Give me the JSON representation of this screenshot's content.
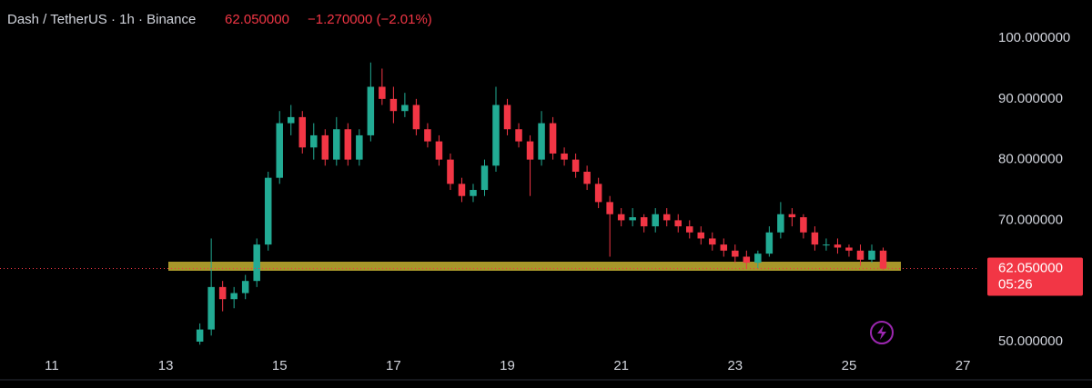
{
  "header": {
    "symbol": "Dash / TetherUS · 1h · Binance",
    "price": "62.050000",
    "change": "−1.270000 (−2.01%)"
  },
  "chart_data": {
    "type": "candlestick",
    "x": [
      13.6,
      13.8,
      14.0,
      14.2,
      14.4,
      14.6,
      14.8,
      15.0,
      15.2,
      15.4,
      15.6,
      15.8,
      16.0,
      16.2,
      16.4,
      16.6,
      16.8,
      17.0,
      17.2,
      17.4,
      17.6,
      17.8,
      18.0,
      18.2,
      18.4,
      18.6,
      18.8,
      19.0,
      19.2,
      19.4,
      19.6,
      19.8,
      20.0,
      20.2,
      20.4,
      20.6,
      20.8,
      21.0,
      21.2,
      21.4,
      21.6,
      21.8,
      22.0,
      22.2,
      22.4,
      22.6,
      22.8,
      23.0,
      23.2,
      23.4,
      23.6,
      23.8,
      24.0,
      24.2,
      24.4,
      24.6,
      24.8,
      25.0,
      25.2,
      25.4,
      25.6
    ],
    "open": [
      50,
      52,
      59,
      57,
      58,
      60,
      66,
      77,
      86,
      87,
      82,
      84,
      80,
      85,
      80,
      84,
      92,
      90,
      88,
      89,
      85,
      83,
      80,
      76,
      74,
      75,
      79,
      89,
      85,
      83,
      80,
      86,
      81,
      80,
      78,
      76,
      73,
      71,
      70,
      70.5,
      69,
      71,
      70,
      69,
      68,
      67,
      66,
      65,
      64,
      63,
      64.5,
      68,
      71,
      70.5,
      68,
      66,
      66,
      65.5,
      65,
      63.5,
      65
    ],
    "high": [
      53,
      67,
      60,
      59,
      61,
      67,
      78,
      88,
      89,
      88,
      86,
      85,
      87,
      86,
      85,
      96,
      95,
      92,
      91,
      90,
      86,
      84,
      81,
      77,
      76,
      80,
      92,
      90,
      86,
      84,
      88,
      87,
      82,
      81,
      79,
      77,
      74,
      72,
      72,
      71,
      72,
      72,
      71,
      70,
      69,
      68,
      67,
      66,
      65,
      65,
      69,
      73,
      72,
      71,
      69,
      67,
      67,
      66,
      66,
      66,
      65.5
    ],
    "low": [
      49.5,
      51,
      55,
      55.5,
      57,
      59,
      65,
      76,
      84,
      81,
      80,
      79,
      79,
      79,
      79,
      83,
      89,
      86,
      87,
      84,
      82,
      79,
      75,
      73,
      73,
      74,
      78,
      84,
      82,
      74,
      79,
      80,
      79,
      77,
      75,
      72,
      64,
      69,
      69,
      68,
      68,
      69,
      68,
      67,
      66,
      65,
      64,
      63,
      62,
      62,
      64,
      67,
      69,
      67,
      65,
      65,
      64.5,
      64,
      62.5,
      63,
      61.8
    ],
    "close": [
      52,
      59,
      57,
      58,
      60,
      66,
      77,
      86,
      87,
      82,
      84,
      80,
      85,
      80,
      84,
      92,
      90,
      88,
      89,
      85,
      83,
      80,
      76,
      74,
      75,
      79,
      89,
      85,
      83,
      80,
      86,
      81,
      80,
      78,
      76,
      73,
      71,
      70,
      70.5,
      69,
      71,
      70,
      69,
      68,
      67,
      66,
      65,
      64,
      63,
      64.5,
      68,
      71,
      70.5,
      68,
      66,
      66,
      65.5,
      65,
      63.5,
      65,
      62.05
    ],
    "up_color": "#22ab94",
    "down_color": "#f23645",
    "xlim": [
      10.09,
      27.27
    ],
    "xticks": [
      11,
      13,
      15,
      17,
      19,
      21,
      23,
      25,
      27
    ],
    "ylim": [
      47.6,
      106.3
    ],
    "yticks": [
      {
        "value": 50,
        "label": "50.000000"
      },
      {
        "value": 70,
        "label": "70.000000"
      },
      {
        "value": 80,
        "label": "80.000000"
      },
      {
        "value": 90,
        "label": "90.000000"
      },
      {
        "value": 100,
        "label": "100.000000"
      }
    ],
    "last_price": {
      "value": 62.05,
      "label": "62.050000"
    },
    "countdown": "05:26"
  }
}
